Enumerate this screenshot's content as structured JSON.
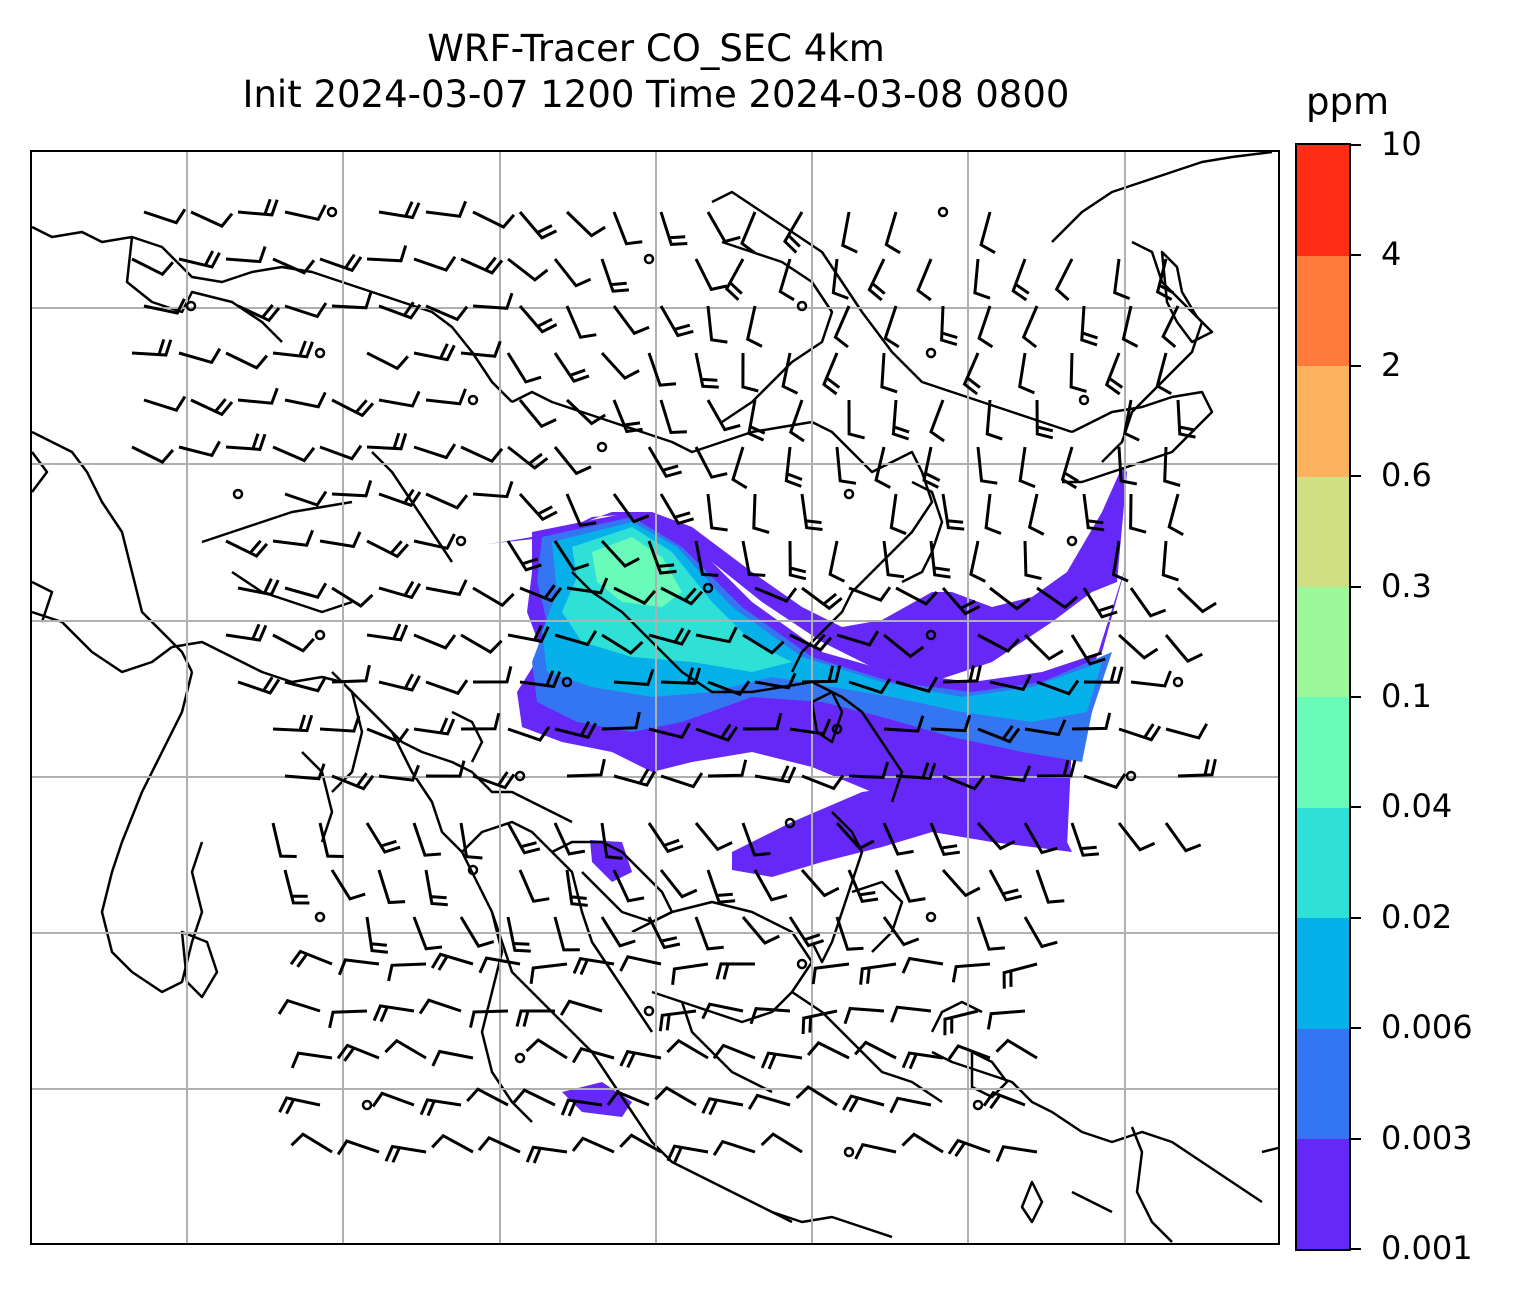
{
  "title": {
    "line1": "WRF-Tracer CO_SEC 4km",
    "line2": "Init 2024-03-07 1200 Time 2024-03-08 0800"
  },
  "colorbar": {
    "unit": "ppm",
    "levels": [
      "0.001",
      "0.003",
      "0.006",
      "0.02",
      "0.04",
      "0.1",
      "0.3",
      "0.6",
      "2",
      "4",
      "10"
    ],
    "colors": [
      "#6528f7",
      "#3476f2",
      "#06b1ea",
      "#2ee0d5",
      "#68fbba",
      "#9cf898",
      "#d0df84",
      "#fdb35e",
      "#ff7a3b",
      "#ff2c16"
    ]
  },
  "map": {
    "gridlines": true,
    "coastline_color": "#000000",
    "barb_color": "#000000",
    "gridline_color": "#b0b0b0"
  },
  "plume": {
    "colors": {
      "lowest": "#6528f7",
      "low": "#3476f2",
      "mid": "#06b1ea",
      "cyan": "#2ee0d5",
      "green": "#68fbba"
    }
  }
}
